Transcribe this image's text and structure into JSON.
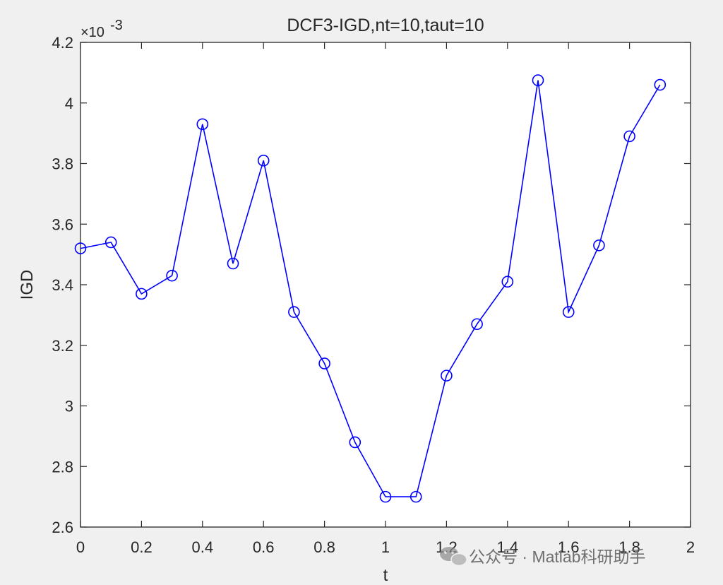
{
  "chart_data": {
    "type": "line",
    "title": "DCF3-IGD,nt=10,taut=10",
    "xlabel": "t",
    "ylabel": "IGD",
    "y_exponent_label": "×10",
    "y_exponent_power": "-3",
    "xlim": [
      0,
      2
    ],
    "ylim": [
      2.6,
      4.2
    ],
    "x_ticks": [
      "0",
      "0.2",
      "0.4",
      "0.6",
      "0.8",
      "1",
      "1.2",
      "1.4",
      "1.6",
      "1.8",
      "2"
    ],
    "y_ticks": [
      "2.6",
      "2.8",
      "3",
      "3.2",
      "3.4",
      "3.6",
      "3.8",
      "4",
      "4.2"
    ],
    "grid": false,
    "marker": "circle",
    "series_color": "#0000ff",
    "x": [
      0,
      0.1,
      0.2,
      0.3,
      0.4,
      0.5,
      0.6,
      0.7,
      0.8,
      0.9,
      1.0,
      1.1,
      1.2,
      1.3,
      1.4,
      1.5,
      1.6,
      1.7,
      1.8,
      1.9
    ],
    "y": [
      3.52,
      3.54,
      3.37,
      3.43,
      3.93,
      3.47,
      3.81,
      3.31,
      3.14,
      2.88,
      2.7,
      2.7,
      3.1,
      3.27,
      3.41,
      4.075,
      3.31,
      3.53,
      3.89,
      4.06
    ]
  },
  "watermark": {
    "text": "公众号 · Matlab科研助手",
    "icon": "wechat-icon"
  }
}
